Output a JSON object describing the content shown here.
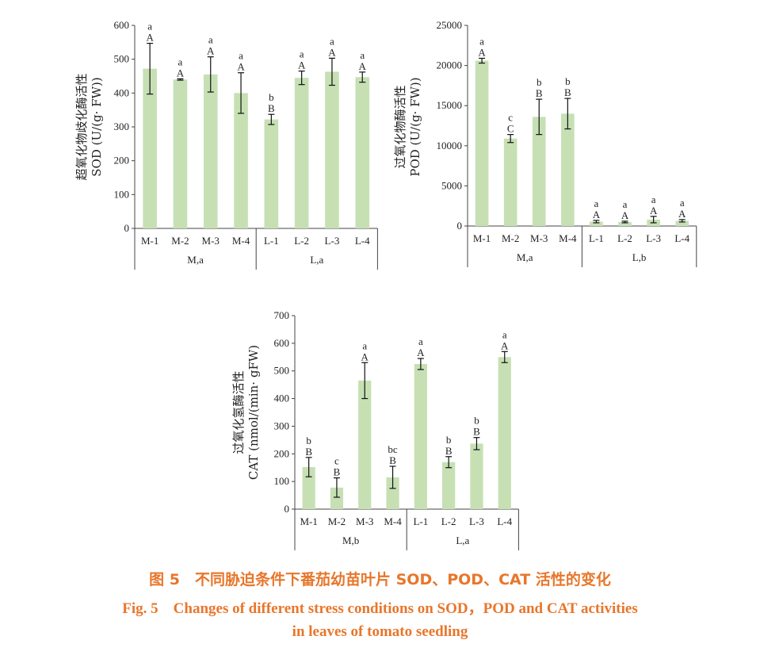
{
  "caption": {
    "cn": "图 5　不同胁迫条件下番茄幼苗叶片 SOD、POD、CAT 活性的变化",
    "en_line1": "Fig. 5　Changes of different stress conditions on SOD，POD and CAT activities",
    "en_line2": "in leaves of tomato seedling"
  },
  "colors": {
    "bar": "#c6e0b4",
    "axis": "#444444",
    "text": "#222222",
    "caption": "#e8762b"
  },
  "chart_data": [
    {
      "type": "bar",
      "ylabel_cn": "超氧化物歧化酶活性",
      "ylabel_en": "SOD (U/(g· FW))",
      "ylim": [
        0,
        600
      ],
      "yticks": [
        0,
        100,
        200,
        300,
        400,
        500,
        600
      ],
      "categories": [
        "M-1",
        "M-2",
        "M-3",
        "M-4",
        "L-1",
        "L-2",
        "L-3",
        "L-4"
      ],
      "values": [
        472,
        440,
        455,
        400,
        322,
        445,
        463,
        447
      ],
      "errors": [
        75,
        2,
        52,
        60,
        15,
        20,
        40,
        15
      ],
      "letters_lower": [
        "a",
        "a",
        "a",
        "a",
        "b",
        "a",
        "a",
        "a"
      ],
      "letters_upper": [
        "A",
        "A",
        "A",
        "A",
        "B",
        "A",
        "A",
        "A"
      ],
      "groups": [
        {
          "label": "M,a",
          "count": 4
        },
        {
          "label": "L,a",
          "count": 4
        }
      ]
    },
    {
      "type": "bar",
      "ylabel_cn": "过氧化物酶活性",
      "ylabel_en": "POD (U/(g· FW))",
      "ylim": [
        0,
        25000
      ],
      "yticks": [
        0,
        5000,
        10000,
        15000,
        20000,
        25000
      ],
      "categories": [
        "M-1",
        "M-2",
        "M-3",
        "M-4",
        "L-1",
        "L-2",
        "L-3",
        "L-4"
      ],
      "values": [
        20600,
        10900,
        13600,
        14000,
        550,
        500,
        800,
        650
      ],
      "errors": [
        300,
        500,
        2200,
        1900,
        150,
        100,
        400,
        150
      ],
      "letters_lower": [
        "a",
        "c",
        "b",
        "b",
        "a",
        "a",
        "a",
        "a"
      ],
      "letters_upper": [
        "A",
        "C",
        "B",
        "B",
        "A",
        "A",
        "A",
        "A"
      ],
      "groups": [
        {
          "label": "M,a",
          "count": 4
        },
        {
          "label": "L,b",
          "count": 4
        }
      ]
    },
    {
      "type": "bar",
      "ylabel_cn": "过氧化氢酶活性",
      "ylabel_en": "CAT (nmol/(min· gFW)",
      "ylim": [
        0,
        700
      ],
      "yticks": [
        0,
        100,
        200,
        300,
        400,
        500,
        600,
        700
      ],
      "categories": [
        "M-1",
        "M-2",
        "M-3",
        "M-4",
        "L-1",
        "L-2",
        "L-3",
        "L-4"
      ],
      "values": [
        152,
        78,
        465,
        115,
        525,
        170,
        237,
        550
      ],
      "errors": [
        35,
        35,
        65,
        40,
        20,
        20,
        22,
        20
      ],
      "letters_lower": [
        "b",
        "c",
        "a",
        "bc",
        "a",
        "b",
        "b",
        "a"
      ],
      "letters_upper": [
        "B",
        "B",
        "A",
        "B",
        "A",
        "B",
        "B",
        "A"
      ],
      "groups": [
        {
          "label": "M,b",
          "count": 4
        },
        {
          "label": "L,a",
          "count": 4
        }
      ]
    }
  ]
}
